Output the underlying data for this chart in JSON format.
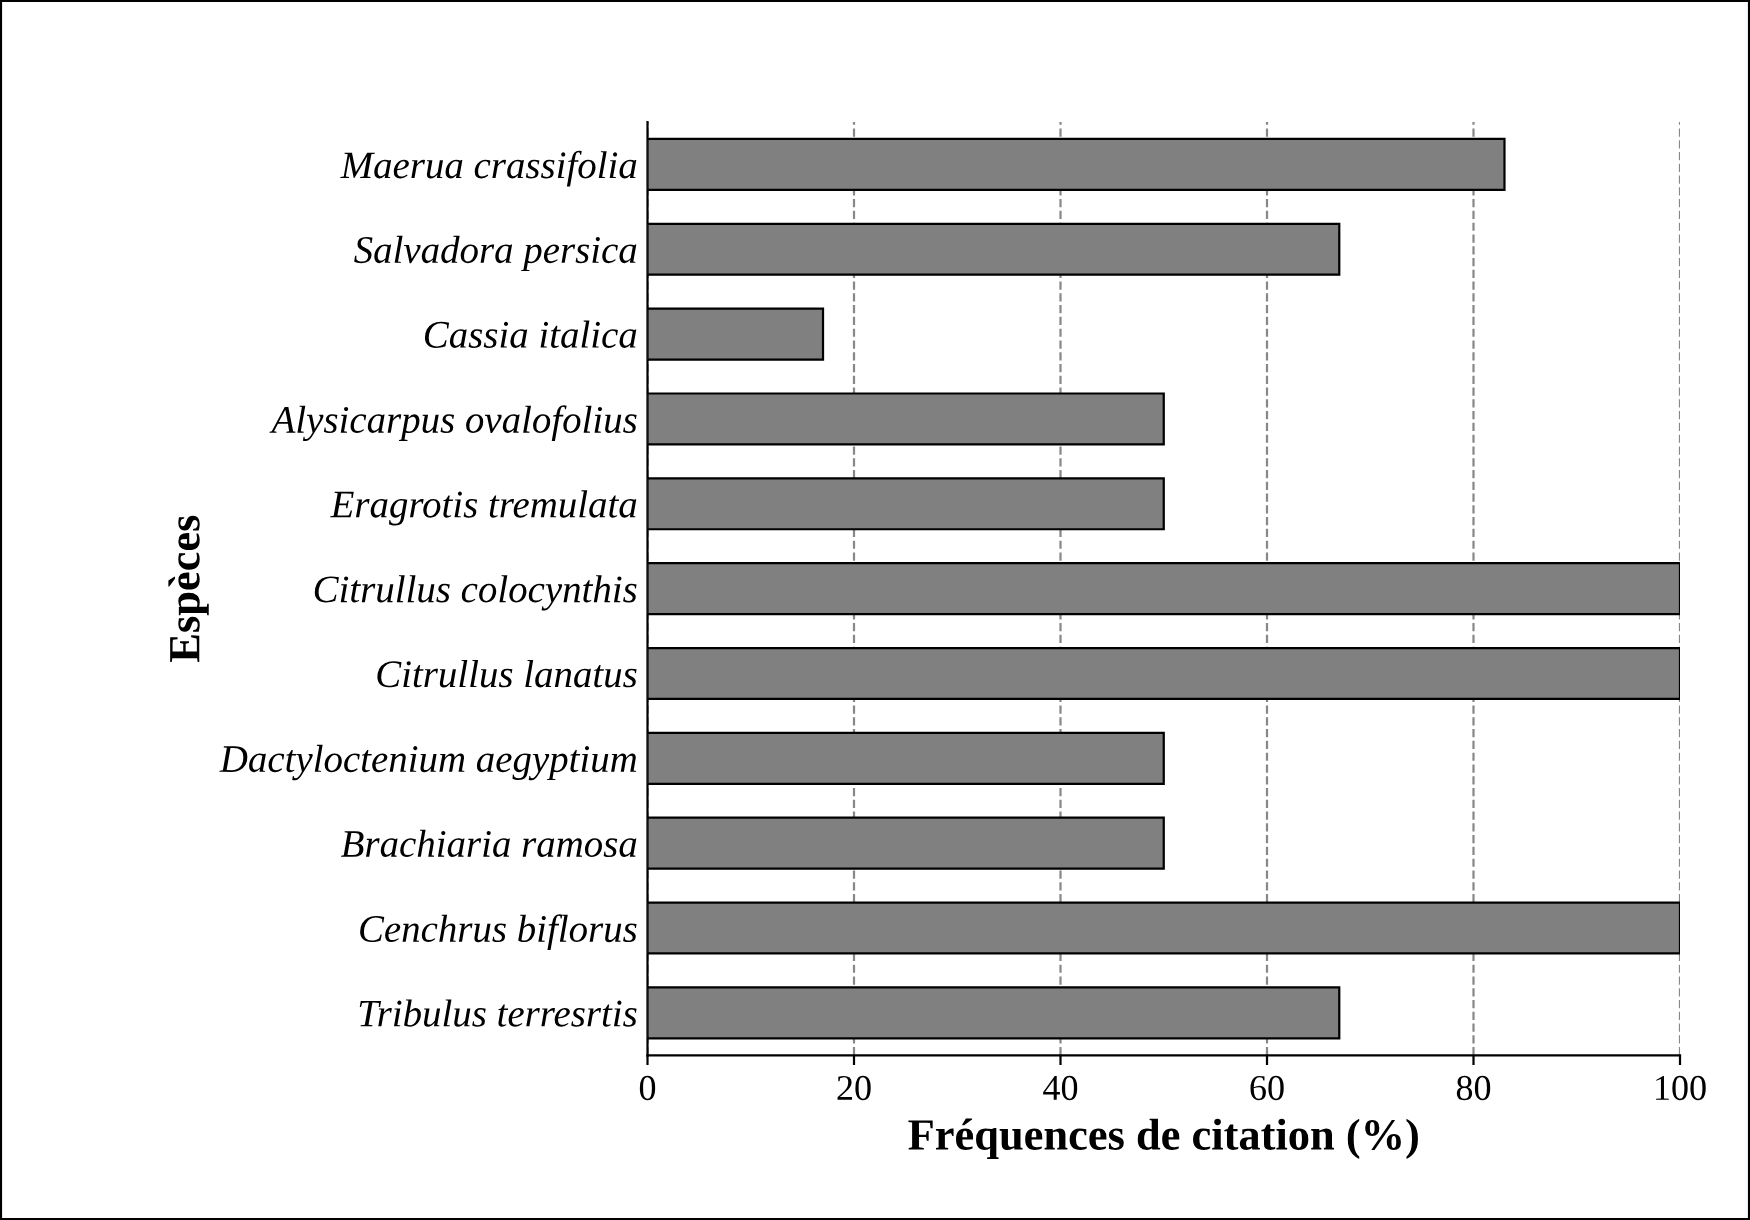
{
  "chart_data": {
    "type": "bar",
    "orientation": "horizontal",
    "xlabel": "Fréquences de citation (%)",
    "ylabel": "Espèces",
    "categories": [
      "Maerua crassifolia",
      "Salvadora persica",
      "Cassia italica",
      "Alysicarpus ovalofolius",
      "Eragrotis tremulata",
      "Citrullus colocynthis",
      "Citrullus lanatus",
      "Dactyloctenium aegyptium",
      "Brachiaria ramosa",
      "Cenchrus biflorus",
      "Tribulus terresrtis"
    ],
    "values": [
      83,
      67,
      17,
      50,
      50,
      100,
      100,
      50,
      50,
      100,
      67
    ],
    "color": "#808080",
    "xlim": [
      0,
      100
    ],
    "xticks": [
      0,
      20,
      40,
      60,
      80,
      100
    ],
    "grid": "x",
    "line_style": "dashed"
  }
}
